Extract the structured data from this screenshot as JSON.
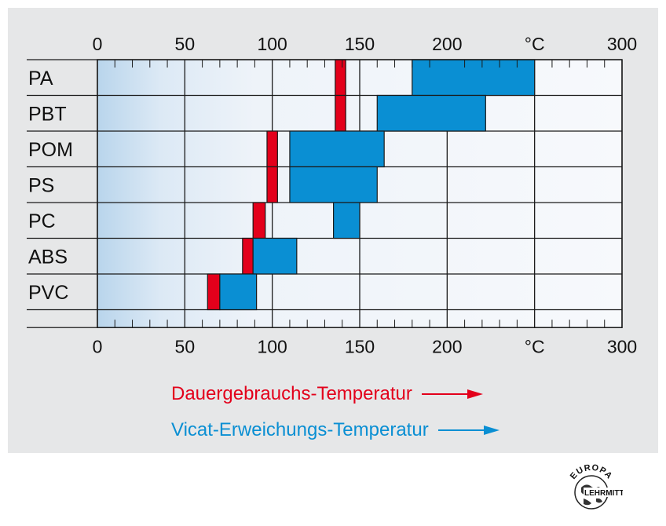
{
  "chart_data": {
    "type": "bar",
    "orientation": "horizontal",
    "unit": "°C",
    "categories": [
      "PA",
      "PBT",
      "POM",
      "PS",
      "PC",
      "ABS",
      "PVC"
    ],
    "series": [
      {
        "name": "Dauergebrauchs-Temperatur",
        "color": "#e3001b",
        "ranges": [
          [
            136,
            142
          ],
          [
            136,
            142
          ],
          [
            97,
            103
          ],
          [
            97,
            103
          ],
          [
            89,
            96
          ],
          [
            83,
            89
          ],
          [
            63,
            70
          ]
        ]
      },
      {
        "name": "Vicat-Erweichungs-Temperatur",
        "color": "#0a8fd3",
        "ranges": [
          [
            180,
            250
          ],
          [
            160,
            222
          ],
          [
            110,
            164
          ],
          [
            110,
            160
          ],
          [
            135,
            150
          ],
          [
            89,
            114
          ],
          [
            70,
            91
          ]
        ]
      }
    ],
    "xlim": [
      0,
      300
    ],
    "x_ticks": [
      {
        "value": 0,
        "label": "0"
      },
      {
        "value": 50,
        "label": "50"
      },
      {
        "value": 100,
        "label": "100"
      },
      {
        "value": 150,
        "label": "150"
      },
      {
        "value": 200,
        "label": "200"
      },
      {
        "value": 250,
        "label": "°C"
      },
      {
        "value": 300,
        "label": "300"
      }
    ],
    "xaxis_position": "top-and-bottom",
    "grid": true,
    "legend_position": "bottom"
  },
  "legend": {
    "dauer": "Dauergebrauchs-Temperatur",
    "vicat": "Vicat-Erweichungs-Temperatur"
  },
  "logo": {
    "top_text": "EUROPA",
    "bottom_text": "LEHRMITTEL"
  }
}
